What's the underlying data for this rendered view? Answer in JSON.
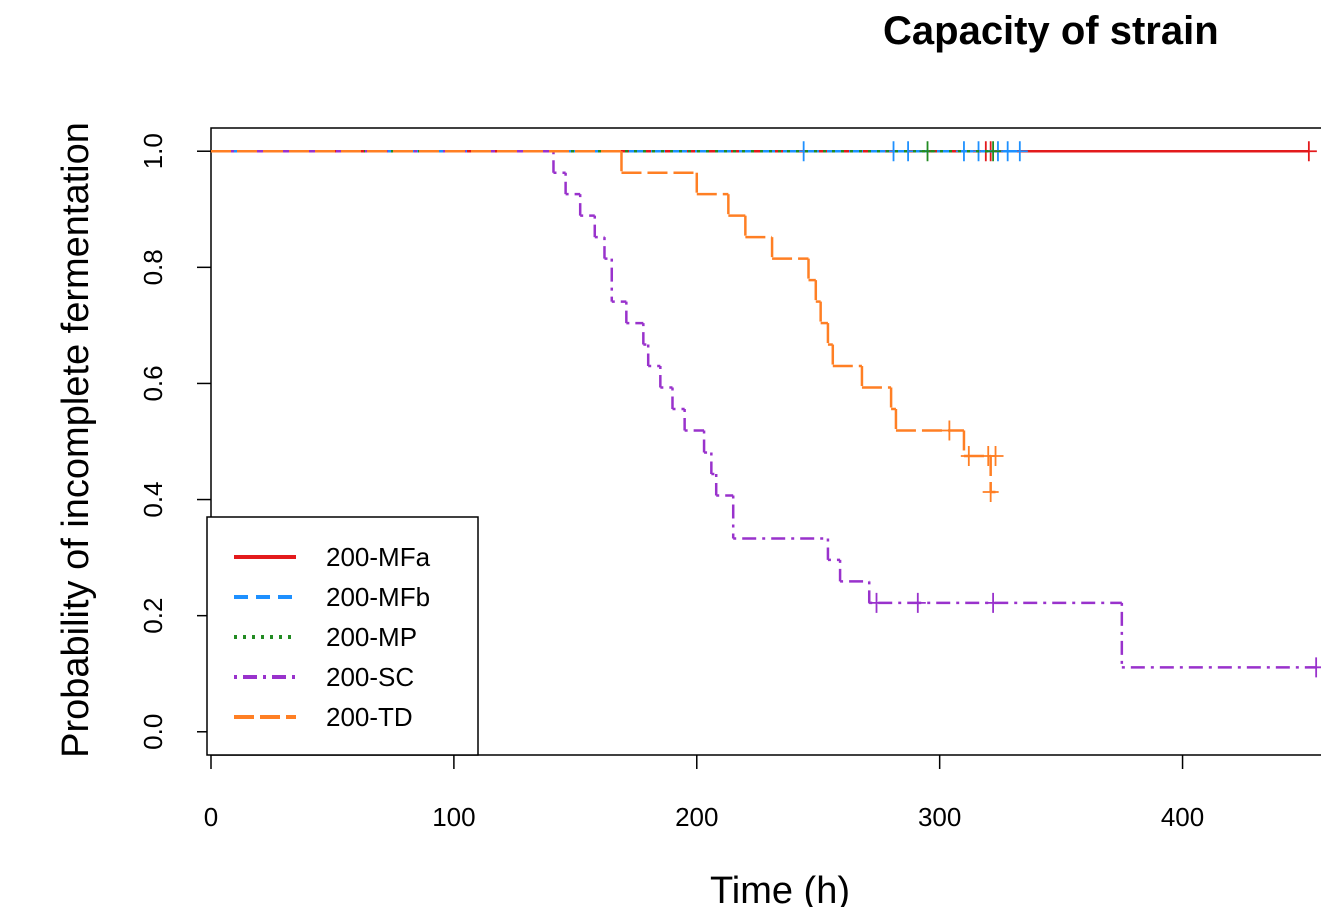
{
  "chart_data": {
    "type": "step",
    "title": "Capacity of strain",
    "x_label": "Time (h)",
    "y_label": "Probability of incomplete fermentation",
    "xlim": [
      0,
      457
    ],
    "ylim": [
      -0.04,
      1.04
    ],
    "xticks": [
      0,
      100,
      200,
      300,
      400
    ],
    "yticks": [
      {
        "value": 0,
        "label": "0.0"
      },
      0.2,
      0.4,
      0.6,
      0.8,
      {
        "value": 1,
        "label": "1.0"
      }
    ],
    "legend": "bottomleft",
    "series": [
      {
        "name": "200-MFa",
        "color": "#e31a1c",
        "dash": "solid",
        "x": [
          0,
          452
        ],
        "values": [
          1,
          1
        ],
        "censor_x": [
          319,
          321,
          452
        ],
        "censor_values": [
          1,
          1,
          1
        ]
      },
      {
        "name": "200-MFb",
        "color": "#1e90ff",
        "dash": "dashed",
        "x": [
          0,
          333
        ],
        "values": [
          1,
          1
        ],
        "censor_x": [
          244,
          281,
          287,
          310,
          316,
          324,
          328,
          333
        ],
        "censor_values": [
          1,
          1,
          1,
          1,
          1,
          1,
          1,
          1
        ]
      },
      {
        "name": "200-MP",
        "color": "#228b22",
        "dash": "dotted",
        "x": [
          0,
          322
        ],
        "values": [
          1,
          1
        ],
        "censor_x": [
          295,
          322
        ],
        "censor_values": [
          1,
          1
        ]
      },
      {
        "name": "200-SC",
        "color": "#9932cc",
        "dash": "dotdash",
        "x": [
          0,
          141,
          146,
          152,
          158,
          162,
          165,
          171,
          178,
          180,
          185,
          190,
          195,
          203,
          206,
          208,
          215,
          254,
          259,
          271,
          375,
          455
        ],
        "values": [
          1,
          0.963,
          0.926,
          0.889,
          0.852,
          0.815,
          0.741,
          0.704,
          0.667,
          0.63,
          0.593,
          0.556,
          0.519,
          0.481,
          0.444,
          0.407,
          0.333,
          0.296,
          0.259,
          0.222,
          0.111,
          0.111
        ],
        "censor_x": [
          274,
          291,
          322,
          455
        ],
        "censor_values": [
          0.222,
          0.222,
          0.222,
          0.111
        ]
      },
      {
        "name": "200-TD",
        "color": "#ff7f24",
        "dash": "longdash",
        "x": [
          0,
          169,
          200,
          213,
          220,
          231,
          246,
          249,
          251,
          254,
          256,
          268,
          280,
          282,
          310,
          321,
          323
        ],
        "values": [
          1,
          0.963,
          0.926,
          0.889,
          0.852,
          0.815,
          0.778,
          0.741,
          0.704,
          0.667,
          0.63,
          0.593,
          0.556,
          0.519,
          0.475,
          0.413,
          0.413
        ],
        "censor_x": [
          304,
          312,
          320,
          323,
          321
        ],
        "censor_values": [
          0.519,
          0.475,
          0.475,
          0.475,
          0.413
        ]
      }
    ]
  }
}
